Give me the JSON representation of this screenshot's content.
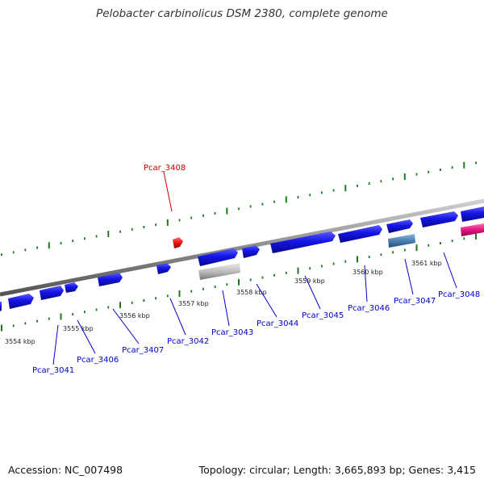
{
  "title": "Pelobacter carbinolicus DSM 2380, complete genome",
  "footer": {
    "accession": "Accession: NC_007498",
    "summary": "Topology: circular; Length: 3,665,893 bp; Genes: 3,415"
  },
  "colors": {
    "gene_forward": "#1414e6",
    "gene_reverse": "#1414e6",
    "gene_gray": "#b8b8b8",
    "gene_steel": "#4a7fb3",
    "gene_pink": "#e6147d",
    "gene_red": "#ee1111",
    "backbone": "#8c8c8c",
    "tick": "#1f7a1f",
    "label_blue": "#0000cc",
    "label_red": "#cc0000"
  },
  "scale_labels": [
    "3554 kbp",
    "3555 kbp",
    "3556 kbp",
    "3557 kbp",
    "3558 kbp",
    "3559 kbp",
    "3560 kbp",
    "3561 kbp"
  ],
  "gene_labels": {
    "top": [
      "Pcar_3408"
    ],
    "bottom": [
      "Pcar_3041",
      "Pcar_3406",
      "Pcar_3407",
      "Pcar_3042",
      "Pcar_3043",
      "Pcar_3044",
      "Pcar_3045",
      "Pcar_3046",
      "Pcar_3047",
      "Pcar_3048"
    ]
  }
}
